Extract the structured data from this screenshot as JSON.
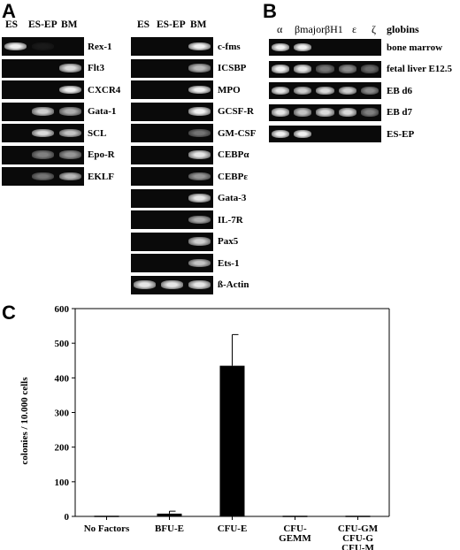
{
  "panelA": {
    "letter": "A",
    "left_columns": [
      "ES",
      "ES-EP",
      "BM"
    ],
    "right_columns": [
      "ES",
      "ES-EP",
      "BM"
    ],
    "left_genes": [
      {
        "label": "Rex-1",
        "bands": [
          1.0,
          0.05,
          0.0
        ]
      },
      {
        "label": "Flt3",
        "bands": [
          0.0,
          0.0,
          0.9
        ]
      },
      {
        "label": "CXCR4",
        "bands": [
          0.0,
          0.0,
          1.0
        ]
      },
      {
        "label": "Gata-1",
        "bands": [
          0.0,
          0.85,
          0.7
        ]
      },
      {
        "label": "SCL",
        "bands": [
          0.0,
          0.9,
          0.8
        ]
      },
      {
        "label": "Epo-R",
        "bands": [
          0.0,
          0.5,
          0.6
        ]
      },
      {
        "label": "EKLF",
        "bands": [
          0.0,
          0.45,
          0.75
        ]
      }
    ],
    "right_genes": [
      {
        "label": "c-fms",
        "bands": [
          0.0,
          0.0,
          1.0
        ]
      },
      {
        "label": "ICSBP",
        "bands": [
          0.0,
          0.0,
          0.75
        ]
      },
      {
        "label": "MPO",
        "bands": [
          0.0,
          0.0,
          1.0
        ]
      },
      {
        "label": "GCSF-R",
        "bands": [
          0.0,
          0.0,
          1.0
        ]
      },
      {
        "label": "GM-CSF",
        "bands": [
          0.0,
          0.0,
          0.45
        ]
      },
      {
        "label": "CEBPα",
        "bands": [
          0.0,
          0.0,
          0.95
        ]
      },
      {
        "label": "CEBPε",
        "bands": [
          0.0,
          0.0,
          0.6
        ]
      },
      {
        "label": "Gata-3",
        "bands": [
          0.0,
          0.0,
          0.95
        ]
      },
      {
        "label": "IL-7R",
        "bands": [
          0.0,
          0.0,
          0.7
        ]
      },
      {
        "label": "Pax5",
        "bands": [
          0.0,
          0.0,
          0.85
        ]
      },
      {
        "label": "Ets-1",
        "bands": [
          0.0,
          0.0,
          0.8
        ]
      },
      {
        "label": "ß-Actin",
        "bands": [
          0.95,
          0.95,
          0.95
        ]
      }
    ]
  },
  "panelB": {
    "letter": "B",
    "columns": [
      "α",
      "βmajor",
      "βH1",
      "ε",
      "ζ"
    ],
    "header_label": "globins",
    "rows": [
      {
        "label": "bone marrow",
        "bands": [
          1.0,
          1.0,
          0.0,
          0.0,
          0.0
        ]
      },
      {
        "label": "fetal liver E12.5",
        "bands": [
          1.0,
          0.95,
          0.45,
          0.55,
          0.4
        ]
      },
      {
        "label": "EB d6",
        "bands": [
          0.95,
          0.85,
          0.9,
          0.85,
          0.55
        ]
      },
      {
        "label": "EB d7",
        "bands": [
          0.95,
          0.8,
          0.9,
          0.9,
          0.5
        ]
      },
      {
        "label": "ES-EP",
        "bands": [
          1.0,
          1.0,
          0.0,
          0.0,
          0.0
        ]
      }
    ]
  },
  "panelC": {
    "letter": "C",
    "chart_data": {
      "type": "bar",
      "categories": [
        "No Factors",
        "BFU-E",
        "CFU-E",
        "CFU-GEMM",
        "CFU-GM CFU-G CFU-M"
      ],
      "category_lines": [
        [
          "No Factors"
        ],
        [
          "BFU-E"
        ],
        [
          "CFU-E"
        ],
        [
          "CFU-",
          "GEMM"
        ],
        [
          "CFU-GM",
          "CFU-G",
          "CFU-M"
        ]
      ],
      "values": [
        0,
        8,
        435,
        0,
        0
      ],
      "errors": [
        0,
        7,
        90,
        0,
        0
      ],
      "ylabel": "colonies / 10.000 cells",
      "ylim": [
        0,
        600
      ],
      "yticks": [
        "0",
        "100",
        "200",
        "300",
        "400",
        "500",
        "600"
      ],
      "grid": false
    }
  }
}
